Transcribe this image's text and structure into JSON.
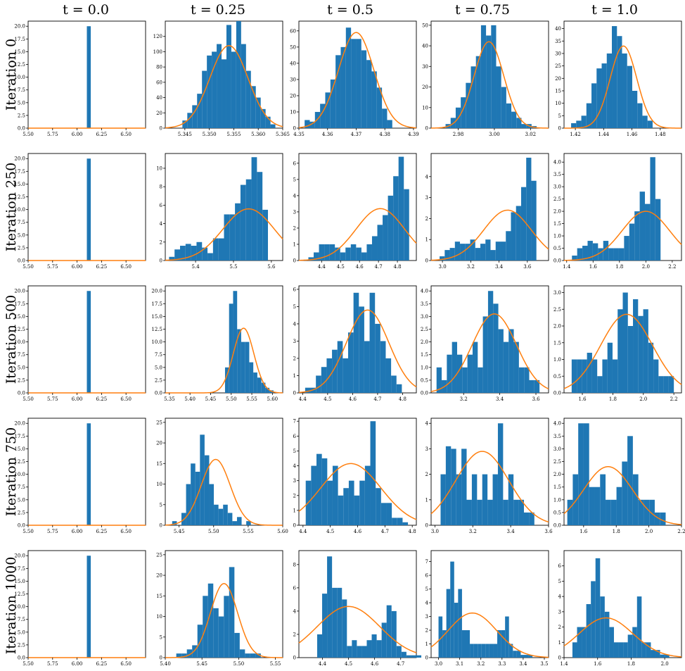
{
  "figure": {
    "column_titles": [
      "t = 0.0",
      "t = 0.25",
      "t = 0.5",
      "t = 0.75",
      "t = 1.0"
    ],
    "row_titles": [
      "Iteration 0",
      "Iteration 250",
      "Iteration 500",
      "Iteration 750",
      "Iteration 1000"
    ]
  },
  "colors": {
    "histogram": "#1f77b4",
    "density": "#ff7f0e",
    "frame": "#000000"
  },
  "chart_data": [
    {
      "type": "histogram",
      "row": "Iteration 0",
      "col": "t = 0.0",
      "xlim": [
        5.5,
        6.7
      ],
      "ylim": [
        0,
        21
      ],
      "xticks": [
        "5.50",
        "5.75",
        "6.00",
        "6.25",
        "6.50"
      ],
      "yticks": [
        "0.0",
        "2.5",
        "5.0",
        "7.5",
        "10.0",
        "12.5",
        "15.0",
        "17.5",
        "20.0"
      ],
      "bins_start": 6.1,
      "bin_width": 0.04,
      "counts": [
        20
      ],
      "curve": {
        "kind": "flat",
        "value": 0
      }
    },
    {
      "type": "histogram",
      "row": "Iteration 0",
      "col": "t = 0.25",
      "xlim": [
        5.341,
        5.365
      ],
      "ylim": [
        0,
        140
      ],
      "xticks": [
        "5.345",
        "5.350",
        "5.355",
        "5.360",
        "5.365"
      ],
      "yticks": [
        "0",
        "20",
        "40",
        "60",
        "80",
        "100",
        "120"
      ],
      "bins_start": 5.3445,
      "bin_width": 0.001,
      "counts": [
        10,
        20,
        30,
        45,
        75,
        95,
        100,
        110,
        90,
        135,
        100,
        140,
        110,
        75,
        55,
        40,
        25,
        15,
        5
      ],
      "curve": {
        "kind": "gauss",
        "mu": 5.354,
        "sigma": 0.0039,
        "peak": 108
      }
    },
    {
      "type": "histogram",
      "row": "Iteration 0",
      "col": "t = 0.5",
      "xlim": [
        4.35,
        4.391
      ],
      "ylim": [
        0,
        66
      ],
      "xticks": [
        "4.35",
        "4.36",
        "4.37",
        "4.38",
        "4.39"
      ],
      "yticks": [
        "0",
        "10",
        "20",
        "30",
        "40",
        "50",
        "60"
      ],
      "bins_start": 4.352,
      "bin_width": 0.0018,
      "counts": [
        5,
        4,
        10,
        15,
        22,
        30,
        45,
        50,
        62,
        55,
        55,
        48,
        42,
        35,
        25,
        12,
        5
      ],
      "curve": {
        "kind": "gauss",
        "mu": 4.37,
        "sigma": 0.0062,
        "peak": 59
      }
    },
    {
      "type": "histogram",
      "row": "Iteration 0",
      "col": "t = 0.75",
      "xlim": [
        2.965,
        3.03
      ],
      "ylim": [
        0,
        52
      ],
      "xticks": [
        "2.98",
        "3.00",
        "3.02"
      ],
      "yticks": [
        "0",
        "10",
        "20",
        "30",
        "40",
        "50"
      ],
      "bins_start": 2.973,
      "bin_width": 0.0028,
      "counts": [
        2,
        5,
        10,
        15,
        22,
        30,
        35,
        50,
        45,
        50,
        30,
        20,
        12,
        8,
        5,
        2,
        2,
        1
      ],
      "curve": {
        "kind": "gauss",
        "mu": 2.997,
        "sigma": 0.0082,
        "peak": 42
      }
    },
    {
      "type": "histogram",
      "row": "Iteration 0",
      "col": "t = 1.0",
      "xlim": [
        1.412,
        1.495
      ],
      "ylim": [
        0,
        43
      ],
      "xticks": [
        "1.42",
        "1.44",
        "1.46",
        "1.48"
      ],
      "yticks": [
        "0",
        "5",
        "10",
        "15",
        "20",
        "25",
        "30",
        "35",
        "40"
      ],
      "bins_start": 1.417,
      "bin_width": 0.0036,
      "counts": [
        2,
        3,
        5,
        10,
        18,
        24,
        26,
        30,
        41,
        37,
        30,
        25,
        15,
        10,
        5,
        3
      ],
      "curve": {
        "kind": "gauss",
        "mu": 1.454,
        "sigma": 0.0094,
        "peak": 33
      }
    },
    {
      "type": "histogram",
      "row": "Iteration 250",
      "col": "t = 0.0",
      "xlim": [
        5.5,
        6.7
      ],
      "ylim": [
        0,
        21
      ],
      "xticks": [
        "5.50",
        "5.75",
        "6.00",
        "6.25",
        "6.50"
      ],
      "yticks": [
        "0.0",
        "2.5",
        "5.0",
        "7.5",
        "10.0",
        "12.5",
        "15.0",
        "17.5",
        "20.0"
      ],
      "bins_start": 6.1,
      "bin_width": 0.04,
      "counts": [
        20
      ],
      "curve": {
        "kind": "flat",
        "value": 0
      }
    },
    {
      "type": "histogram",
      "row": "Iteration 250",
      "col": "t = 0.25",
      "xlim": [
        5.32,
        5.63
      ],
      "ylim": [
        0,
        11.6
      ],
      "xticks": [
        "5.4",
        "5.5",
        "5.6"
      ],
      "yticks": [
        "0",
        "2",
        "4",
        "6",
        "8",
        "10"
      ],
      "bins_start": 5.33,
      "bin_width": 0.0145,
      "counts": [
        0.4,
        1.2,
        1.6,
        1.8,
        1.6,
        2,
        1.4,
        0.8,
        2.4,
        2.4,
        5,
        5,
        6.2,
        8.2,
        8.8,
        11.2,
        9.6,
        5.5
      ],
      "curve": {
        "kind": "gauss",
        "mu": 5.54,
        "sigma": 0.068,
        "peak": 5.6
      }
    },
    {
      "type": "histogram",
      "row": "Iteration 250",
      "col": "t = 0.5",
      "xlim": [
        4.28,
        4.9
      ],
      "ylim": [
        0,
        6.6
      ],
      "xticks": [
        "4.4",
        "4.5",
        "4.6",
        "4.7",
        "4.8"
      ],
      "yticks": [
        "0",
        "1",
        "2",
        "3",
        "4",
        "5",
        "6"
      ],
      "bins_start": 4.33,
      "bin_width": 0.028,
      "counts": [
        0.2,
        0.5,
        1,
        1,
        1,
        0.8,
        0.5,
        0.8,
        1,
        0.8,
        0.5,
        1,
        1.5,
        2.2,
        2.8,
        4,
        5.2,
        6.4,
        4.4
      ],
      "curve": {
        "kind": "gauss",
        "mu": 4.71,
        "sigma": 0.128,
        "peak": 3.2
      }
    },
    {
      "type": "histogram",
      "row": "Iteration 250",
      "col": "t = 0.75",
      "xlim": [
        2.92,
        3.75
      ],
      "ylim": [
        0,
        5.1
      ],
      "xticks": [
        "3.0",
        "3.2",
        "3.4",
        "3.6"
      ],
      "yticks": [
        "0",
        "1",
        "2",
        "3",
        "4"
      ],
      "bins_start": 2.98,
      "bin_width": 0.036,
      "counts": [
        0.2,
        0.5,
        0.6,
        0.9,
        0.8,
        0.8,
        1,
        0.6,
        0.8,
        1,
        0.5,
        0.9,
        0.9,
        1.4,
        2.3,
        2.6,
        3.5,
        4.9,
        3.8
      ],
      "curve": {
        "kind": "gauss",
        "mu": 3.46,
        "sigma": 0.168,
        "peak": 2.4
      }
    },
    {
      "type": "histogram",
      "row": "Iteration 250",
      "col": "t = 1.0",
      "xlim": [
        1.38,
        2.27
      ],
      "ylim": [
        0,
        4.35
      ],
      "xticks": [
        "1.4",
        "1.6",
        "1.8",
        "2.0",
        "2.2"
      ],
      "yticks": [
        "0.0",
        "0.5",
        "1.0",
        "1.5",
        "2.0",
        "2.5",
        "3.0",
        "3.5",
        "4.0"
      ],
      "bins_start": 1.44,
      "bin_width": 0.0395,
      "counts": [
        0.2,
        0.5,
        0.6,
        0.8,
        0.7,
        0.5,
        0.8,
        0.5,
        0.5,
        0.5,
        1,
        1.5,
        2,
        2.8,
        2.3,
        4.2,
        2.5
      ],
      "curve": {
        "kind": "gauss",
        "mu": 2.0,
        "sigma": 0.18,
        "peak": 2.0
      }
    },
    {
      "type": "histogram",
      "row": "Iteration 500",
      "col": "t = 0.0",
      "xlim": [
        5.5,
        6.7
      ],
      "ylim": [
        0,
        21
      ],
      "xticks": [
        "5.50",
        "5.75",
        "6.00",
        "6.25",
        "6.50"
      ],
      "yticks": [
        "0.0",
        "2.5",
        "5.0",
        "7.5",
        "10.0",
        "12.5",
        "15.0",
        "17.5",
        "20.0"
      ],
      "bins_start": 6.1,
      "bin_width": 0.04,
      "counts": [
        20
      ],
      "curve": {
        "kind": "flat",
        "value": 0
      }
    },
    {
      "type": "histogram",
      "row": "Iteration 500",
      "col": "t = 0.25",
      "xlim": [
        5.34,
        5.625
      ],
      "ylim": [
        0,
        21
      ],
      "xticks": [
        "5.35",
        "5.40",
        "5.45",
        "5.50",
        "5.55",
        "5.60"
      ],
      "yticks": [
        "0.0",
        "2.5",
        "5.0",
        "7.5",
        "10.0",
        "12.5",
        "15.0",
        "17.5",
        "20.0"
      ],
      "bins_start": 5.485,
      "bin_width": 0.0098,
      "counts": [
        5,
        17.5,
        20,
        12.5,
        10,
        10,
        6,
        4,
        3,
        2,
        1,
        0.5
      ],
      "curve": {
        "kind": "gauss",
        "mu": 5.53,
        "sigma": 0.025,
        "peak": 12.7
      }
    },
    {
      "type": "histogram",
      "row": "Iteration 500",
      "col": "t = 0.5",
      "xlim": [
        4.385,
        4.855
      ],
      "ylim": [
        0,
        6.2
      ],
      "xticks": [
        "4.4",
        "4.5",
        "4.6",
        "4.7",
        "4.8"
      ],
      "yticks": [
        "0",
        "1",
        "2",
        "3",
        "4",
        "5",
        "6"
      ],
      "bins_start": 4.41,
      "bin_width": 0.0215,
      "counts": [
        0.3,
        0.3,
        1,
        1.5,
        2,
        2.5,
        3,
        2,
        3.5,
        5.8,
        5,
        3,
        5.8,
        4,
        3,
        2,
        1,
        0.5
      ],
      "curve": {
        "kind": "gauss",
        "mu": 4.66,
        "sigma": 0.085,
        "peak": 4.8
      }
    },
    {
      "type": "histogram",
      "row": "Iteration 500",
      "col": "t = 0.75",
      "xlim": [
        3.02,
        3.67
      ],
      "ylim": [
        0,
        4.2
      ],
      "xticks": [
        "3.2",
        "3.4",
        "3.6"
      ],
      "yticks": [
        "0.0",
        "0.5",
        "1.0",
        "1.5",
        "2.0",
        "2.5",
        "3.0",
        "3.5",
        "4.0"
      ],
      "bins_start": 3.05,
      "bin_width": 0.0285,
      "counts": [
        1,
        0.5,
        1.5,
        2,
        1.5,
        1,
        1.5,
        2,
        1,
        3,
        4,
        3.5,
        2.5,
        2,
        2.5,
        2,
        1,
        1,
        0.5,
        0.5
      ],
      "curve": {
        "kind": "gauss",
        "mu": 3.37,
        "sigma": 0.123,
        "peak": 3.1
      }
    },
    {
      "type": "histogram",
      "row": "Iteration 500",
      "col": "t = 1.0",
      "xlim": [
        1.48,
        2.25
      ],
      "ylim": [
        0,
        3.2
      ],
      "xticks": [
        "1.6",
        "1.8",
        "2.0",
        "2.2"
      ],
      "yticks": [
        "0.0",
        "0.5",
        "1.0",
        "1.5",
        "2.0",
        "2.5",
        "3.0"
      ],
      "bins_start": 1.53,
      "bin_width": 0.0335,
      "counts": [
        1,
        1,
        1,
        1.2,
        1,
        0.5,
        1,
        1.5,
        1,
        2.5,
        3,
        2,
        2.8,
        2.3,
        2.5,
        1.5,
        1,
        0.5,
        0.5,
        0.5
      ],
      "curve": {
        "kind": "gauss",
        "mu": 1.89,
        "sigma": 0.17,
        "peak": 2.35
      }
    },
    {
      "type": "histogram",
      "row": "Iteration 750",
      "col": "t = 0.0",
      "xlim": [
        5.5,
        6.7
      ],
      "ylim": [
        0,
        21
      ],
      "xticks": [
        "5.50",
        "5.75",
        "6.00",
        "6.25",
        "6.50"
      ],
      "yticks": [
        "0.0",
        "2.5",
        "5.0",
        "7.5",
        "10.0",
        "12.5",
        "15.0",
        "17.5",
        "20.0"
      ],
      "bins_start": 6.1,
      "bin_width": 0.04,
      "counts": [
        20
      ],
      "curve": {
        "kind": "flat",
        "value": 0
      }
    },
    {
      "type": "histogram",
      "row": "Iteration 750",
      "col": "t = 0.25",
      "xlim": [
        5.43,
        5.6
      ],
      "ylim": [
        0,
        26
      ],
      "xticks": [
        "5.45",
        "5.50",
        "5.55",
        "5.60"
      ],
      "yticks": [
        "0",
        "5",
        "10",
        "15",
        "20",
        "25"
      ],
      "bins_start": 5.44,
      "bin_width": 0.0067,
      "counts": [
        1,
        0,
        3,
        10,
        15,
        13,
        22,
        17,
        10,
        5,
        4,
        5,
        3,
        1,
        2,
        0,
        1
      ],
      "curve": {
        "kind": "gauss",
        "mu": 5.503,
        "sigma": 0.021,
        "peak": 16
      }
    },
    {
      "type": "histogram",
      "row": "Iteration 750",
      "col": "t = 0.5",
      "xlim": [
        4.385,
        4.815
      ],
      "ylim": [
        0,
        7.2
      ],
      "xticks": [
        "4.4",
        "4.5",
        "4.6",
        "4.7",
        "4.8"
      ],
      "yticks": [
        "0",
        "1",
        "2",
        "3",
        "4",
        "5",
        "6",
        "7"
      ],
      "bins_start": 4.41,
      "bin_width": 0.0197,
      "counts": [
        3,
        4,
        4.8,
        4.5,
        3,
        4,
        2,
        2.5,
        3,
        2,
        3,
        4,
        7,
        2.5,
        1.5,
        1.5,
        0.5,
        0.5,
        0.2
      ],
      "curve": {
        "kind": "gauss",
        "mu": 4.575,
        "sigma": 0.11,
        "peak": 4.15
      }
    },
    {
      "type": "histogram",
      "row": "Iteration 750",
      "col": "t = 0.75",
      "xlim": [
        2.98,
        3.6
      ],
      "ylim": [
        0,
        4.2
      ],
      "xticks": [
        "3.0",
        "3.2",
        "3.4",
        "3.6"
      ],
      "yticks": [
        "0",
        "1",
        "2",
        "3",
        "4"
      ],
      "bins_start": 3.03,
      "bin_width": 0.0275,
      "counts": [
        2,
        3.1,
        3,
        2,
        3,
        1,
        2,
        1,
        2,
        1,
        2,
        4,
        1,
        2,
        1,
        1,
        0.5,
        0.5
      ],
      "curve": {
        "kind": "gauss",
        "mu": 3.25,
        "sigma": 0.14,
        "peak": 2.9
      }
    },
    {
      "type": "histogram",
      "row": "Iteration 750",
      "col": "t = 1.0",
      "xlim": [
        1.48,
        2.2
      ],
      "ylim": [
        0,
        4.2
      ],
      "xticks": [
        "1.6",
        "1.8",
        "2.0",
        "2.2"
      ],
      "yticks": [
        "0.0",
        "0.5",
        "1.0",
        "1.5",
        "2.0",
        "2.5",
        "3.0",
        "3.5",
        "4.0"
      ],
      "bins_start": 1.5,
      "bin_width": 0.0335,
      "counts": [
        1,
        2,
        4,
        4,
        1.5,
        1.5,
        2,
        1,
        1,
        1.5,
        2.5,
        3.5,
        2,
        1,
        1,
        1,
        0.5,
        0.5
      ],
      "curve": {
        "kind": "gauss",
        "mu": 1.75,
        "sigma": 0.15,
        "peak": 2.3
      }
    },
    {
      "type": "histogram",
      "row": "Iteration 1000",
      "col": "t = 0.0",
      "xlim": [
        5.5,
        6.7
      ],
      "ylim": [
        0,
        21
      ],
      "xticks": [
        "5.50",
        "5.75",
        "6.00",
        "6.25",
        "6.50"
      ],
      "yticks": [
        "0.0",
        "2.5",
        "5.0",
        "7.5",
        "10.0",
        "12.5",
        "15.0",
        "17.5",
        "20.0"
      ],
      "bins_start": 6.1,
      "bin_width": 0.04,
      "counts": [
        20
      ],
      "curve": {
        "kind": "flat",
        "value": 0
      }
    },
    {
      "type": "histogram",
      "row": "Iteration 1000",
      "col": "t = 0.25",
      "xlim": [
        5.4,
        5.56
      ],
      "ylim": [
        0,
        26
      ],
      "xticks": [
        "5.40",
        "5.45",
        "5.50",
        "5.55"
      ],
      "yticks": [
        "0",
        "5",
        "10",
        "15",
        "20",
        "25"
      ],
      "bins_start": 5.415,
      "bin_width": 0.0072,
      "counts": [
        1,
        1,
        2,
        3,
        8,
        15,
        18,
        12,
        10,
        15,
        22,
        6,
        2,
        1,
        1,
        1
      ],
      "curve": {
        "kind": "gauss",
        "mu": 5.48,
        "sigma": 0.0185,
        "peak": 18
      }
    },
    {
      "type": "histogram",
      "row": "Iteration 1000",
      "col": "t = 0.5",
      "xlim": [
        4.31,
        4.76
      ],
      "ylim": [
        0,
        9.2
      ],
      "xticks": [
        "4.4",
        "4.5",
        "4.6",
        "4.7"
      ],
      "yticks": [
        "0",
        "2",
        "4",
        "6",
        "8"
      ],
      "bins_start": 4.38,
      "bin_width": 0.019,
      "counts": [
        2,
        5.5,
        8.7,
        6,
        6,
        5,
        1,
        1.5,
        1,
        1,
        1.5,
        2,
        1.5,
        3,
        4.5,
        4,
        1,
        0.5,
        0.2,
        0.2,
        0.2
      ],
      "curve": {
        "kind": "gauss",
        "mu": 4.5,
        "sigma": 0.12,
        "peak": 4.4
      }
    },
    {
      "type": "histogram",
      "row": "Iteration 1000",
      "col": "t = 0.75",
      "xlim": [
        2.965,
        3.52
      ],
      "ylim": [
        0,
        7.8
      ],
      "xticks": [
        "3.0",
        "3.1",
        "3.2",
        "3.3",
        "3.4",
        "3.5"
      ],
      "yticks": [
        "0",
        "1",
        "2",
        "3",
        "4",
        "5",
        "6",
        "7"
      ],
      "bins_start": 3.0,
      "bin_width": 0.0185,
      "counts": [
        3,
        2,
        5,
        7,
        4,
        5,
        2,
        2,
        1,
        1,
        1,
        1,
        1,
        1,
        1,
        2,
        2,
        3,
        1,
        0.5,
        0.5,
        0.2,
        0.2,
        0.2
      ],
      "curve": {
        "kind": "gauss",
        "mu": 3.16,
        "sigma": 0.115,
        "peak": 3.25
      }
    },
    {
      "type": "histogram",
      "row": "Iteration 1000",
      "col": "t = 1.0",
      "xlim": [
        1.4,
        2.1
      ],
      "ylim": [
        0,
        7.0
      ],
      "xticks": [
        "1.4",
        "1.6",
        "1.8",
        "2.0"
      ],
      "yticks": [
        "0",
        "1",
        "2",
        "3",
        "4",
        "5",
        "6"
      ],
      "bins_start": 1.45,
      "bin_width": 0.0275,
      "counts": [
        1,
        2,
        2,
        3.5,
        5,
        6.5,
        4,
        3,
        2,
        1,
        1,
        1,
        1.5,
        2,
        4,
        1,
        1,
        0.5,
        0.5,
        0.2,
        0.2
      ],
      "curve": {
        "kind": "gauss",
        "mu": 1.65,
        "sigma": 0.16,
        "peak": 2.6
      }
    }
  ]
}
